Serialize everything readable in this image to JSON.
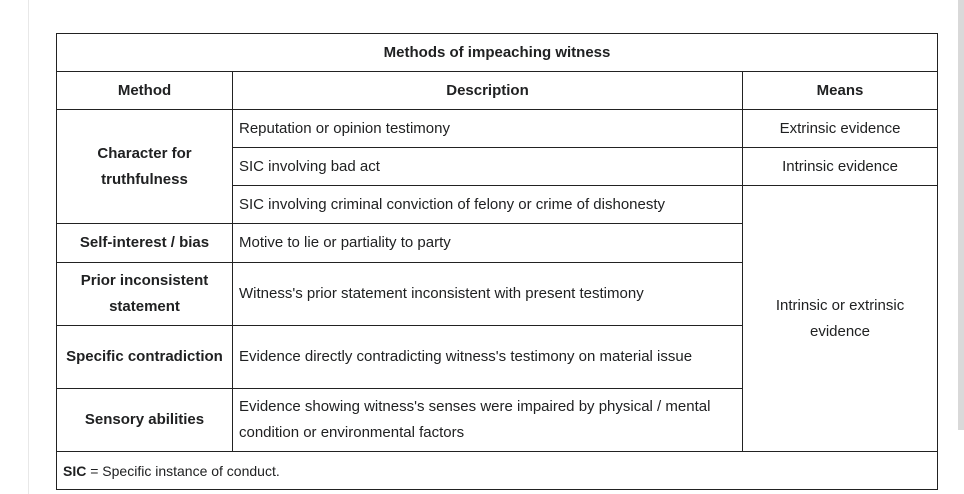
{
  "table": {
    "caption": "Methods of impeaching witness",
    "headers": {
      "method": "Method",
      "description": "Description",
      "means": "Means"
    },
    "rows": {
      "character": {
        "method": "Character for truthfulness",
        "descriptions": [
          "Reputation or opinion testimony",
          "SIC involving bad act",
          "SIC involving criminal conviction of felony or crime of dishonesty"
        ],
        "means": [
          "Extrinsic evidence",
          "Intrinsic evidence"
        ]
      },
      "self_interest": {
        "method": "Self-interest / bias",
        "description": "Motive to lie or partiality to party"
      },
      "prior_inconsistent": {
        "method": "Prior inconsistent statement",
        "description": "Witness's prior statement inconsistent with present testimony"
      },
      "specific_contradiction": {
        "method": "Specific contradiction",
        "description": "Evidence directly contradicting witness's testimony on material issue"
      },
      "sensory": {
        "method": "Sensory abilities",
        "description": "Evidence showing witness's senses were impaired by physical / mental condition or environmental factors"
      },
      "shared_means": "Intrinsic or extrinsic evidence"
    },
    "footnote": {
      "term": "SIC",
      "definition": " = Specific instance of conduct."
    }
  }
}
